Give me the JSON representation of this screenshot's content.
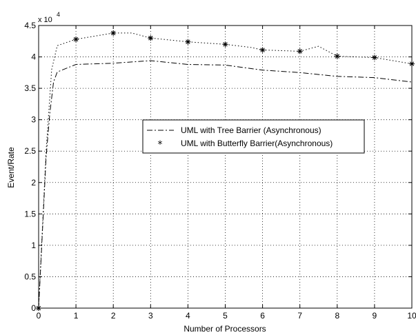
{
  "chart_data": {
    "type": "line",
    "xlabel": "Number of Processors",
    "ylabel": "Event/Rate",
    "y_multiplier": "x 10",
    "y_multiplier_exp": "4",
    "xlim": [
      0,
      10
    ],
    "ylim": [
      0,
      45000
    ],
    "x_ticks": [
      0,
      1,
      2,
      3,
      4,
      5,
      6,
      7,
      8,
      9,
      10
    ],
    "y_ticks": [
      {
        "value": 0,
        "label": "0"
      },
      {
        "value": 5000,
        "label": "0.5"
      },
      {
        "value": 10000,
        "label": "1"
      },
      {
        "value": 15000,
        "label": "1.5"
      },
      {
        "value": 20000,
        "label": "2"
      },
      {
        "value": 25000,
        "label": "2.5"
      },
      {
        "value": 30000,
        "label": "3"
      },
      {
        "value": 35000,
        "label": "3.5"
      },
      {
        "value": 40000,
        "label": "4"
      },
      {
        "value": 45000,
        "label": "4.5"
      }
    ],
    "grid": true,
    "legend_position": "center",
    "series": [
      {
        "name": "UML with Tree Barrier (Asynchronous)",
        "style": "dash-dot",
        "color": "#000000",
        "x": [
          0,
          0.1,
          0.2,
          0.3,
          0.4,
          0.5,
          1,
          2,
          3,
          4,
          5,
          6,
          7,
          8,
          9,
          10
        ],
        "y": [
          0,
          12000,
          24000,
          31000,
          36000,
          37600,
          38800,
          39000,
          39400,
          38800,
          38700,
          37900,
          37500,
          36900,
          36700,
          36000
        ]
      },
      {
        "name": "UML with Butterfly Barrier(Asynchronous)",
        "style": "dotted",
        "marker": "*",
        "color": "#000000",
        "x": [
          0,
          0.2,
          0.35,
          0.5,
          1,
          1.5,
          2,
          2.5,
          3,
          4,
          5,
          5.7,
          6,
          7,
          7.5,
          8,
          9,
          10
        ],
        "y": [
          0,
          25000,
          38000,
          41800,
          42800,
          43300,
          43800,
          43800,
          43000,
          42400,
          42000,
          41500,
          41100,
          40900,
          41700,
          40100,
          39900,
          38900
        ],
        "marker_x": [
          0,
          1,
          2,
          3,
          4,
          5,
          6,
          7,
          8,
          9,
          10
        ],
        "marker_y": [
          0,
          42800,
          43800,
          43000,
          42400,
          42000,
          41100,
          40900,
          40100,
          39900,
          38900
        ]
      }
    ]
  }
}
